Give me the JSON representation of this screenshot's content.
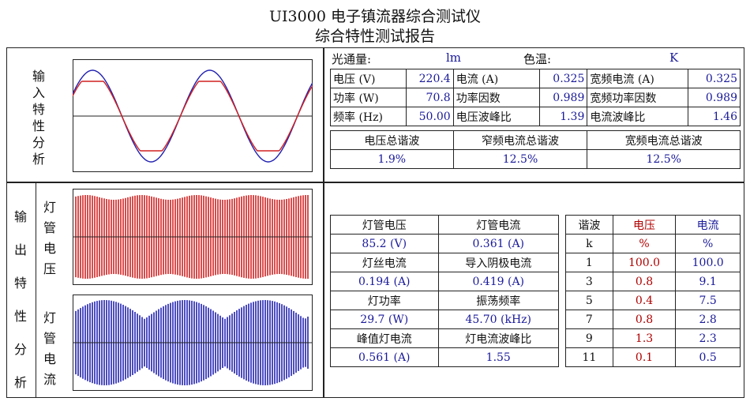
{
  "header": {
    "title": "UI3000 电子镇流器综合测试仪",
    "subtitle": "综合特性测试报告"
  },
  "input_section": {
    "label": "输入特性分析",
    "flux_label": "光通量:",
    "flux_unit": "lm",
    "colortemp_label": "色温:",
    "colortemp_unit": "K",
    "rows": [
      {
        "l1": "电压 (V)",
        "v1": "220.4",
        "l2": "电流 (A)",
        "v2": "0.325",
        "l3": "宽频电流 (A)",
        "v3": "0.325"
      },
      {
        "l1": "功率 (W)",
        "v1": "70.8",
        "l2": "功率因数",
        "v2": "0.989",
        "l3": "宽频功率因数",
        "v3": "0.989"
      },
      {
        "l1": "频率 (Hz)",
        "v1": "50.00",
        "l2": "电压波峰比",
        "v2": "1.39",
        "l3": "电流波峰比",
        "v3": "1.46"
      }
    ],
    "thd_headers": [
      "电压总谐波",
      "窄频电流总谐波",
      "宽频电流总谐波"
    ],
    "thd_values": [
      "1.9%",
      "12.5%",
      "12.5%"
    ]
  },
  "output_section": {
    "label": "输出特性分析",
    "voltage_label": "灯管电压",
    "current_label": "灯管电流",
    "params": [
      {
        "h1": "灯管电压",
        "h2": "灯管电流",
        "v1": "85.2 (V)",
        "v2": "0.361 (A)"
      },
      {
        "h1": "灯丝电流",
        "h2": "导入阴极电流",
        "v1": "0.194 (A)",
        "v2": "0.419 (A)"
      },
      {
        "h1": "灯功率",
        "h2": "振荡频率",
        "v1": "29.7 (W)",
        "v2": "45.70 (kHz)"
      },
      {
        "h1": "峰值灯电流",
        "h2": "灯电流波峰比",
        "v1": "0.561 (A)",
        "v2": "1.55"
      }
    ],
    "harmonics": {
      "headers": [
        "谐波",
        "电压",
        "电流"
      ],
      "units": [
        "k",
        "%",
        "%"
      ],
      "rows": [
        [
          "1",
          "100.0",
          "100.0"
        ],
        [
          "3",
          "0.8",
          "9.1"
        ],
        [
          "5",
          "0.4",
          "7.5"
        ],
        [
          "7",
          "0.8",
          "2.8"
        ],
        [
          "9",
          "1.3",
          "2.3"
        ],
        [
          "11",
          "0.1",
          "0.5"
        ]
      ]
    }
  },
  "colors": {
    "voltage": "#d02020",
    "current": "#2020b0",
    "border": "#222222"
  }
}
